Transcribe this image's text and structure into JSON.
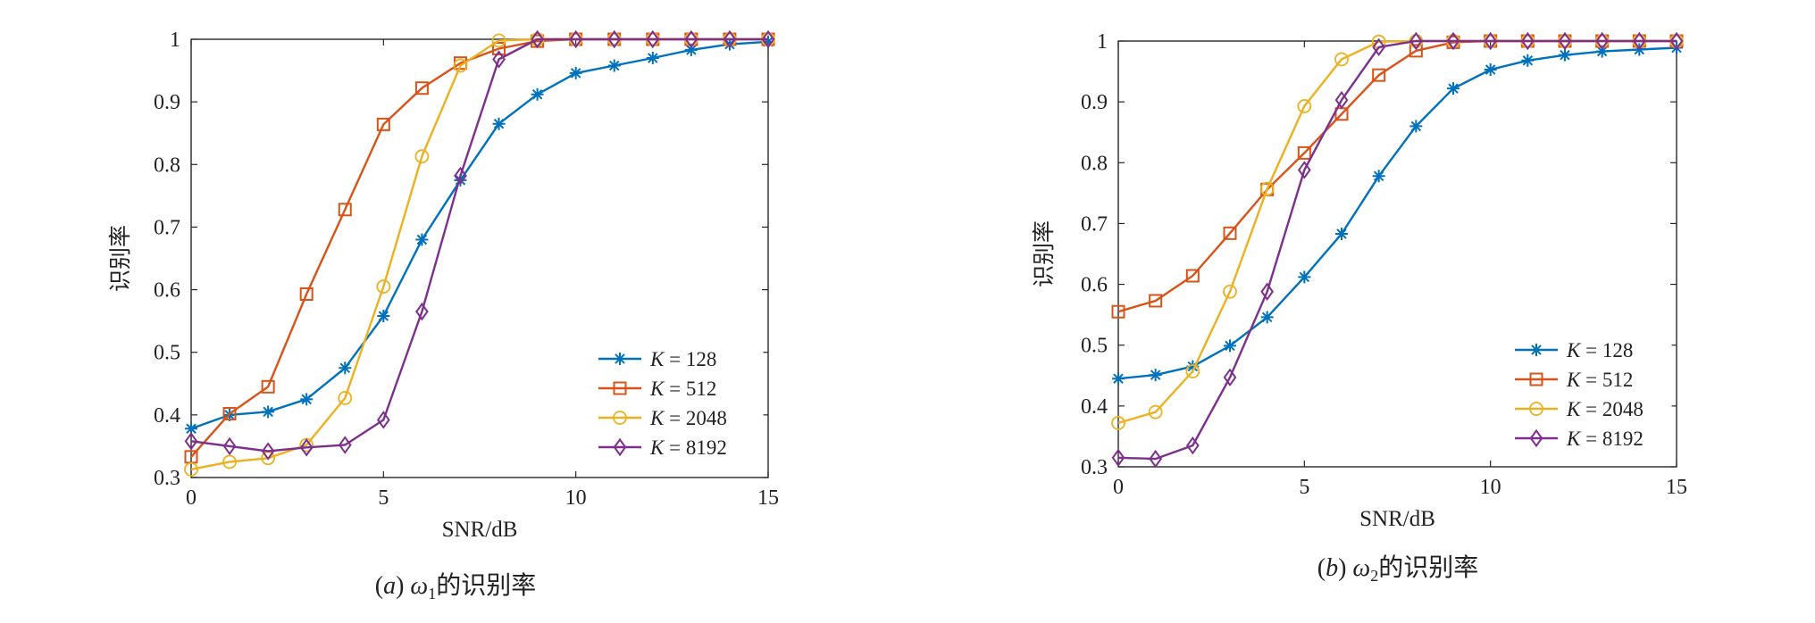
{
  "chart_data": [
    {
      "type": "line",
      "caption": "(a) ω1 的识别率",
      "xlabel": "SNR/dB",
      "ylabel": "识别率",
      "xlim": [
        0,
        15
      ],
      "ylim": [
        0.3,
        1
      ],
      "xticks": [
        0,
        5,
        10,
        15
      ],
      "xtick_labels": [
        "0",
        "5",
        "10",
        "15"
      ],
      "yticks": [
        0.3,
        0.4,
        0.5,
        0.6,
        0.7,
        0.8,
        0.9,
        1
      ],
      "ytick_labels": [
        "0.3",
        "0.4",
        "0.5",
        "0.6",
        "0.7",
        "0.8",
        "0.9",
        "1"
      ],
      "legend_position": "lower-right",
      "x": [
        0,
        1,
        2,
        3,
        4,
        5,
        6,
        7,
        8,
        9,
        10,
        11,
        12,
        13,
        14,
        15
      ],
      "series": [
        {
          "name": "K = 128",
          "color": "#0072BD",
          "marker": "star",
          "values": [
            0.378,
            0.4,
            0.405,
            0.425,
            0.475,
            0.558,
            0.68,
            0.775,
            0.865,
            0.912,
            0.946,
            0.958,
            0.97,
            0.983,
            0.992,
            0.996
          ]
        },
        {
          "name": "K = 512",
          "color": "#D95319",
          "marker": "square",
          "values": [
            0.333,
            0.402,
            0.445,
            0.593,
            0.728,
            0.864,
            0.922,
            0.962,
            0.985,
            0.997,
            1.0,
            1.0,
            1.0,
            1.0,
            1.0,
            1.0
          ]
        },
        {
          "name": "K = 2048",
          "color": "#EDB120",
          "marker": "circle",
          "values": [
            0.313,
            0.325,
            0.331,
            0.352,
            0.427,
            0.605,
            0.813,
            0.958,
            0.998,
            1.0,
            1.0,
            1.0,
            1.0,
            1.0,
            1.0,
            1.0
          ]
        },
        {
          "name": "K = 8192",
          "color": "#7E2F8E",
          "marker": "diamond",
          "values": [
            0.358,
            0.35,
            0.342,
            0.348,
            0.352,
            0.392,
            0.565,
            0.782,
            0.968,
            1.0,
            1.0,
            1.0,
            1.0,
            1.0,
            1.0,
            1.0
          ]
        }
      ]
    },
    {
      "type": "line",
      "caption": "(b) ω2 的识别率",
      "xlabel": "SNR/dB",
      "ylabel": "识别率",
      "xlim": [
        0,
        15
      ],
      "ylim": [
        0.3,
        1
      ],
      "xticks": [
        0,
        5,
        10,
        15
      ],
      "xtick_labels": [
        "0",
        "5",
        "10",
        "15"
      ],
      "yticks": [
        0.3,
        0.4,
        0.5,
        0.6,
        0.7,
        0.8,
        0.9,
        1
      ],
      "ytick_labels": [
        "0.3",
        "0.4",
        "0.5",
        "0.6",
        "0.7",
        "0.8",
        "0.9",
        "1"
      ],
      "legend_position": "lower-right",
      "x": [
        0,
        1,
        2,
        3,
        4,
        5,
        6,
        7,
        8,
        9,
        10,
        11,
        12,
        13,
        14,
        15
      ],
      "series": [
        {
          "name": "K = 128",
          "color": "#0072BD",
          "marker": "star",
          "values": [
            0.445,
            0.451,
            0.465,
            0.499,
            0.546,
            0.612,
            0.683,
            0.778,
            0.86,
            0.922,
            0.953,
            0.968,
            0.977,
            0.983,
            0.986,
            0.989
          ]
        },
        {
          "name": "K = 512",
          "color": "#D95319",
          "marker": "square",
          "values": [
            0.555,
            0.573,
            0.614,
            0.684,
            0.756,
            0.816,
            0.88,
            0.944,
            0.984,
            0.998,
            1.0,
            1.0,
            1.0,
            1.0,
            1.0,
            1.0
          ]
        },
        {
          "name": "K = 2048",
          "color": "#EDB120",
          "marker": "circle",
          "values": [
            0.372,
            0.39,
            0.457,
            0.588,
            0.757,
            0.893,
            0.97,
            0.999,
            1.0,
            1.0,
            1.0,
            1.0,
            1.0,
            1.0,
            1.0,
            1.0
          ]
        },
        {
          "name": "K = 8192",
          "color": "#7E2F8E",
          "marker": "diamond",
          "values": [
            0.315,
            0.313,
            0.335,
            0.447,
            0.588,
            0.788,
            0.903,
            0.99,
            1.0,
            1.0,
            1.0,
            1.0,
            1.0,
            1.0,
            1.0,
            1.0
          ]
        }
      ]
    }
  ]
}
